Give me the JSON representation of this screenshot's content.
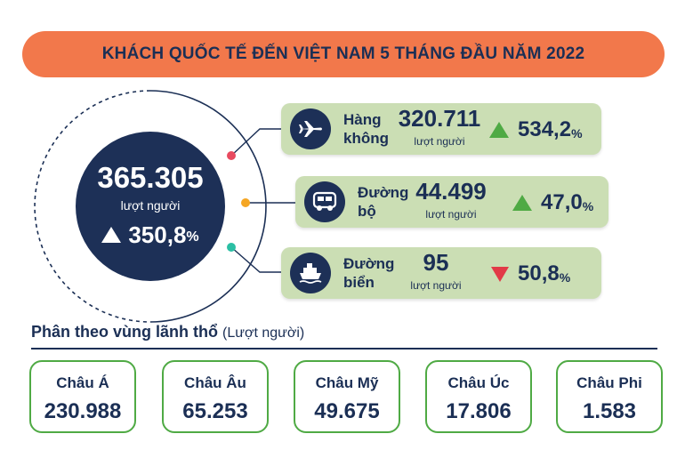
{
  "title": "KHÁCH QUỐC TẾ ĐẾN VIỆT NAM 5 THÁNG ĐẦU NĂM 2022",
  "total": {
    "value": "365.305",
    "unit": "lượt người",
    "growth_value": "350,8",
    "growth_pct": "%",
    "trend": "up"
  },
  "modes": [
    {
      "label_line1": "Hàng",
      "label_line2": "không",
      "value": "320.711",
      "unit": "lượt người",
      "change_value": "534,2",
      "change_pct": "%",
      "trend": "up",
      "icon": "airplane-icon",
      "dot_color": "#e84a5f"
    },
    {
      "label_line1": "Đường",
      "label_line2": "bộ",
      "value": "44.499",
      "unit": "lượt người",
      "change_value": "47,0",
      "change_pct": "%",
      "trend": "up",
      "icon": "bus-icon",
      "dot_color": "#f5a623"
    },
    {
      "label_line1": "Đường",
      "label_line2": "biển",
      "value": "95",
      "unit": "lượt người",
      "change_value": "50,8",
      "change_pct": "%",
      "trend": "down",
      "icon": "ship-icon",
      "dot_color": "#2bbfa4"
    }
  ],
  "regions_heading": {
    "bold": "Phân theo vùng lãnh thổ",
    "sub": "(Lượt người)"
  },
  "regions": [
    {
      "name": "Châu Á",
      "value": "230.988"
    },
    {
      "name": "Châu Âu",
      "value": "65.253"
    },
    {
      "name": "Châu Mỹ",
      "value": "49.675"
    },
    {
      "name": "Châu Úc",
      "value": "17.806"
    },
    {
      "name": "Châu Phi",
      "value": "1.583"
    }
  ],
  "colors": {
    "title_bar": "#f2784b",
    "navy": "#1d3057",
    "card_green": "#cbdeb4",
    "up_green": "#4faa44",
    "down_red": "#e23a47"
  }
}
